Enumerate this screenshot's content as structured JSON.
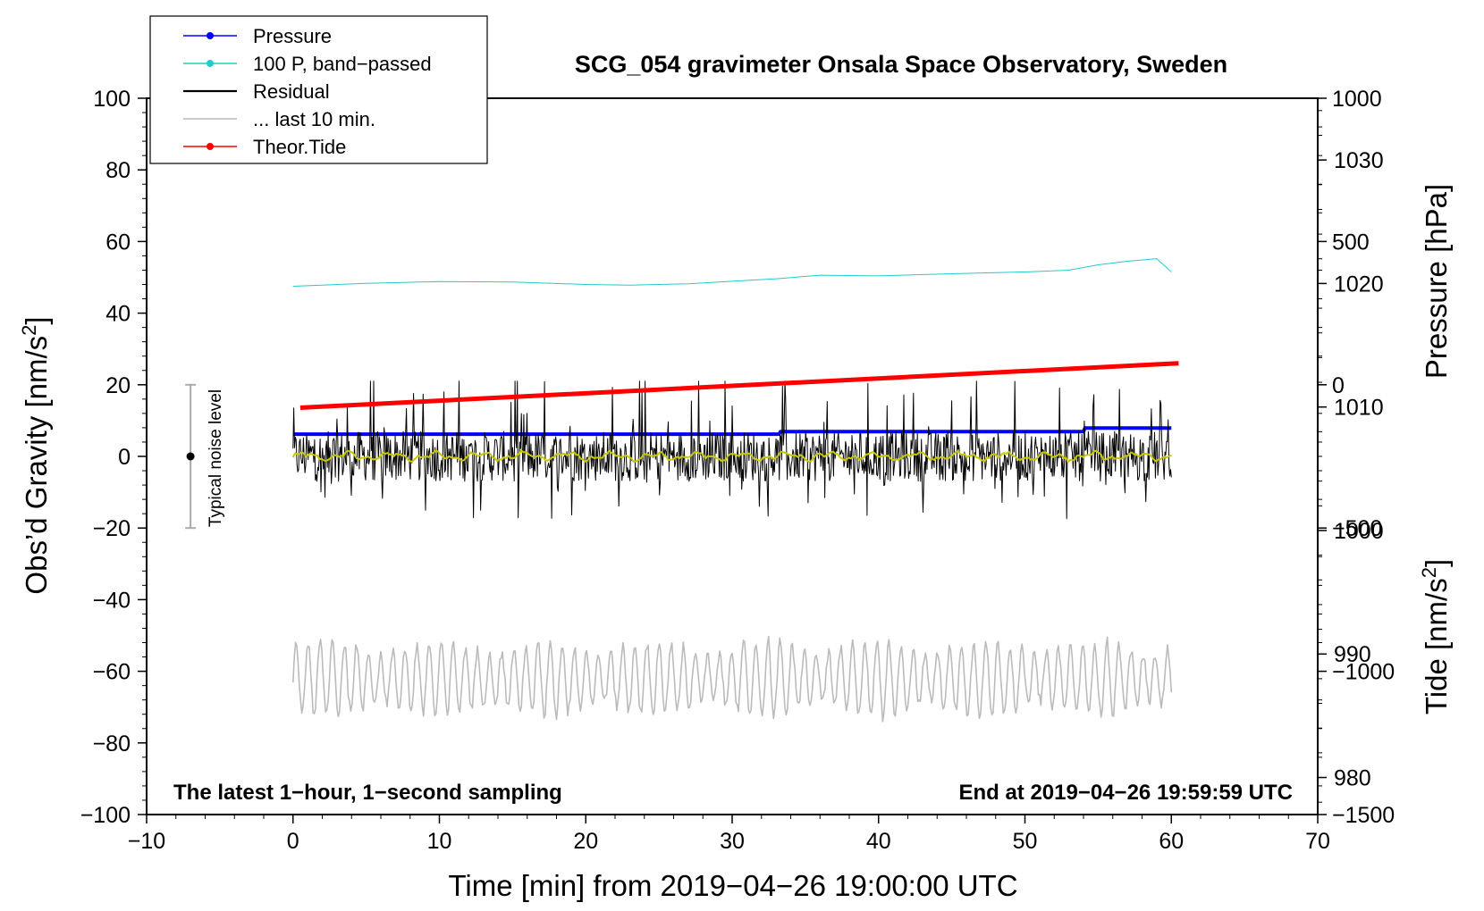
{
  "chart_data": {
    "type": "line",
    "title": "SCG_054 gravimeter Onsala Space Observatory, Sweden",
    "xlabel": "Time [min] from 2019−04−26 19:00:00 UTC",
    "ylabel_left": "Obs’d Gravity [nm/s",
    "ylabel_left_sup": "2",
    "ylabel_left_tail": "]",
    "ylabel_right_pressure": "Pressure [hPa]",
    "ylabel_right_tide": "Tide [nm/s",
    "ylabel_right_tide_sup": "2",
    "ylabel_right_tide_tail": "]",
    "xlim": [
      -10,
      70
    ],
    "ylim_left": [
      -100,
      100
    ],
    "pressure_range": [
      977,
      1035
    ],
    "tide_range": [
      -1500,
      1000
    ],
    "x_ticks": [
      "−10",
      "0",
      "10",
      "20",
      "30",
      "40",
      "50",
      "60",
      "70"
    ],
    "x_tick_values": [
      -10,
      0,
      10,
      20,
      30,
      40,
      50,
      60,
      70
    ],
    "y_ticks_left": [
      "100",
      "80",
      "60",
      "40",
      "20",
      "0",
      "−20",
      "−40",
      "−60",
      "−80",
      "−100"
    ],
    "y_tick_values_left": [
      100,
      80,
      60,
      40,
      20,
      0,
      -20,
      -40,
      -60,
      -80,
      -100
    ],
    "pressure_ticks": [
      "1030",
      "1020",
      "1010",
      "1000",
      "990",
      "980"
    ],
    "pressure_tick_values": [
      1030,
      1020,
      1010,
      1000,
      990,
      980
    ],
    "tide_ticks": [
      "1000",
      "500",
      "0",
      "−500",
      "−1000",
      "−1500"
    ],
    "tide_tick_values": [
      1000,
      500,
      0,
      -500,
      -1000,
      -1500
    ],
    "legend": [
      {
        "label": "Pressure",
        "color": "#0000ff",
        "marker": true
      },
      {
        "label": "100 P, band−passed",
        "color": "#22cccc",
        "marker": true
      },
      {
        "label": "Residual",
        "color": "#000000",
        "marker": false
      },
      {
        "label": "... last 10 min.",
        "color": "#bbbbbb",
        "marker": false
      },
      {
        "label": "Theor.Tide",
        "color": "#ff0000",
        "marker": true
      }
    ],
    "noise_label": "Typical noise level",
    "noise_range": [
      -20,
      20
    ],
    "noise_x": -7,
    "annotation_left": "The latest 1−hour, 1−second sampling",
    "annotation_right": "End at 2019−04−26 19:59:59 UTC",
    "series": [
      {
        "name": "Pressure",
        "axis": "pressure",
        "color": "#0000ff",
        "x": [
          0,
          33.2,
          33.3,
          54,
          54.1,
          60
        ],
        "values": [
          1007.8,
          1007.8,
          1008.0,
          1008.0,
          1008.3,
          1008.3
        ]
      },
      {
        "name": "100 P, band−passed",
        "axis": "left",
        "color": "#22cccc",
        "x": [
          0,
          5,
          10,
          15,
          20,
          23,
          27,
          30,
          33,
          36,
          40,
          45,
          50,
          53,
          55,
          57,
          59,
          60
        ],
        "values": [
          47.5,
          48.3,
          48.8,
          48.7,
          48.0,
          47.8,
          48.2,
          48.9,
          49.6,
          50.6,
          50.4,
          51.0,
          51.5,
          52.0,
          53.5,
          54.5,
          55.2,
          51.5
        ]
      },
      {
        "name": "Residual",
        "axis": "left",
        "color": "#000000",
        "style": "noise",
        "x_range": [
          0,
          60
        ],
        "amplitude": 7,
        "spike_max": 21,
        "spike_min": -21
      },
      {
        "name": "Residual mean",
        "axis": "left",
        "color": "#c8c800",
        "style": "smooth",
        "x_range": [
          0,
          60
        ],
        "center": 0
      },
      {
        "name": "... last 10 min.",
        "axis": "left",
        "color": "#bbbbbb",
        "style": "oscillation",
        "x_range": [
          0,
          60
        ],
        "center": -62,
        "min": -78,
        "max": -48
      },
      {
        "name": "Theor.Tide",
        "axis": "tide",
        "color": "#ff0000",
        "x": [
          0.5,
          60.5
        ],
        "values": [
          -80,
          75
        ]
      }
    ]
  }
}
